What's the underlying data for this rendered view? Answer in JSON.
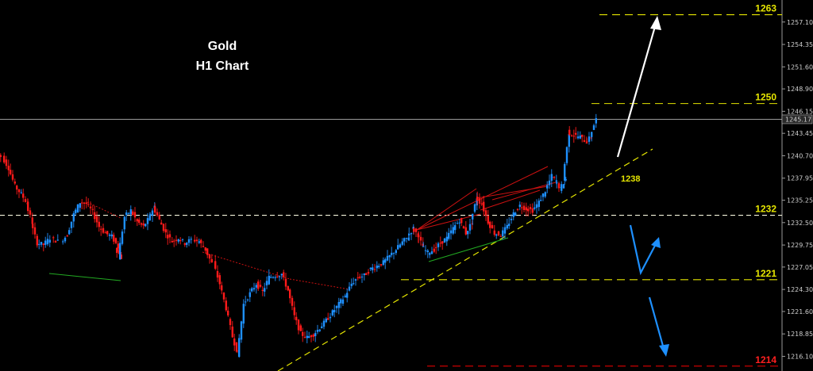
{
  "chart_data": {
    "type": "candlestick",
    "title_lines": [
      "Gold",
      "H1 Chart"
    ],
    "y_axis_ticks": [
      "1257.10",
      "1254.35",
      "1251.60",
      "1248.90",
      "1246.15",
      "1243.45",
      "1240.70",
      "1237.95",
      "1235.25",
      "1232.50",
      "1229.75",
      "1227.05",
      "1224.30",
      "1221.60",
      "1218.85",
      "1216.10"
    ],
    "current_price": "1245.17",
    "ylim": [
      1214.3,
      1259.8
    ],
    "grid": false,
    "levels": [
      {
        "label": "1263",
        "price": 1258.0,
        "color": "#e5e500",
        "text_color": "#e5e500"
      },
      {
        "label": "1250",
        "price": 1247.1,
        "color": "#e5e500",
        "text_color": "#e5e500"
      },
      {
        "label": "1232",
        "price": 1233.4,
        "color": "#f5f5dc",
        "text_color": "#e5e500"
      },
      {
        "label": "1221",
        "price": 1225.5,
        "color": "#e5e500",
        "text_color": "#e5e500"
      },
      {
        "label": "1214",
        "price": 1214.9,
        "color": "#e00000",
        "text_color": "#ff2020"
      }
    ],
    "annotations": [
      "1238"
    ],
    "colors": {
      "bull": "#1e90ff",
      "bear": "#ff1a1a",
      "trendline": "#e5e500",
      "arrow_up": "#ffffff",
      "arrow_down": "#1e90ff"
    }
  }
}
